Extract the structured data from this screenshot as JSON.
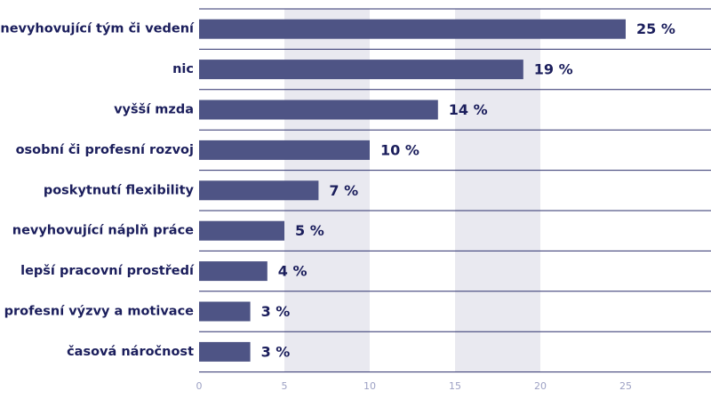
{
  "chart_data": {
    "type": "bar",
    "orientation": "horizontal",
    "categories": [
      "nevyhovující tým či vedení",
      "nic",
      "vyšší mzda",
      "osobní či profesní rozvoj",
      "poskytnutí flexibility",
      "nevyhovující náplň práce",
      "lepší pracovní prostředí",
      "profesní výzvy a motivace",
      "časová náročnost"
    ],
    "values": [
      25,
      19,
      14,
      10,
      7,
      5,
      4,
      3,
      3
    ],
    "value_labels": [
      "25 %",
      "19 %",
      "14 %",
      "10 %",
      "7 %",
      "5 %",
      "4 %",
      "3 %",
      "3 %"
    ],
    "x_ticks": [
      0,
      5,
      10,
      15,
      20,
      25
    ],
    "xlim": [
      0,
      30
    ],
    "title": "",
    "xlabel": "",
    "ylabel": "",
    "colors": {
      "bar": "#4e5485",
      "band": "#e9e9f0",
      "separator": "#2b2f6b",
      "text": "#1b1e5c",
      "tick": "#9da1c4"
    }
  }
}
